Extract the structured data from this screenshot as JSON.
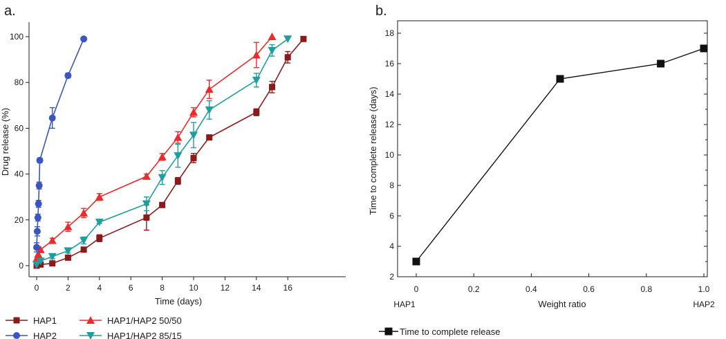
{
  "chart_data": [
    {
      "panel": "a.",
      "type": "line",
      "title": "",
      "xlabel": "Time (days)",
      "ylabel": "Drug release (%)",
      "xlim": [
        -1,
        19
      ],
      "ylim": [
        -2,
        105
      ],
      "xticks": [
        0,
        2,
        4,
        6,
        8,
        10,
        12,
        14,
        16
      ],
      "yticks": [
        0,
        20,
        40,
        60,
        80,
        100
      ],
      "series": [
        {
          "name": "HAP1",
          "color": "#8b1a1a",
          "marker": "square",
          "x": [
            0,
            0.25,
            1,
            2,
            3,
            4,
            7,
            8,
            9,
            10,
            11,
            14,
            15,
            16,
            17
          ],
          "y": [
            0,
            0.5,
            1,
            3.5,
            7,
            12,
            21,
            26.5,
            37,
            47,
            56,
            67,
            78,
            91,
            99
          ],
          "err": [
            0,
            0,
            1,
            1,
            1,
            1.5,
            5.5,
            0,
            1.5,
            2,
            0,
            1.5,
            2.5,
            2.5,
            0
          ]
        },
        {
          "name": "HAP1/HAP2 50/50",
          "color": "#ee2a2a",
          "marker": "triangle-up",
          "x": [
            0,
            0.1,
            0.25,
            1,
            2,
            3,
            4,
            7,
            8,
            9,
            10,
            11,
            14,
            15
          ],
          "y": [
            3,
            5,
            7,
            11,
            17,
            23,
            30,
            39,
            47.5,
            56,
            67,
            77,
            92,
            100
          ],
          "err": [
            0,
            0,
            0,
            1,
            2,
            2,
            1.5,
            1,
            1.5,
            2.5,
            2,
            4,
            5.5,
            0
          ]
        },
        {
          "name": "HAP1/HAP2 85/15",
          "color": "#1e9e9e",
          "marker": "triangle-down",
          "x": [
            0,
            0.25,
            1,
            2,
            3,
            4,
            7,
            8,
            9,
            10,
            11,
            14,
            15,
            16
          ],
          "y": [
            0.5,
            2,
            4,
            6.5,
            11,
            19,
            27,
            38.5,
            48,
            57,
            68,
            81,
            94,
            99
          ],
          "err": [
            0,
            0,
            1,
            1,
            1.5,
            0.5,
            3,
            3,
            5,
            5.5,
            4,
            3,
            2.5,
            0
          ]
        },
        {
          "name": "HAP2",
          "color": "#3a55bf",
          "marker": "circle",
          "x": [
            0,
            0.04,
            0.08,
            0.12,
            0.16,
            0.2,
            1,
            2,
            3
          ],
          "y": [
            8,
            15,
            21,
            27,
            35,
            46,
            64.5,
            83,
            99
          ],
          "err": [
            2,
            2,
            1.5,
            1.5,
            1.5,
            1,
            4.5,
            1,
            0
          ]
        }
      ],
      "legend": [
        "HAP1",
        "HAP2",
        "HAP1/HAP2 50/50",
        "HAP1/HAP2 85/15"
      ]
    },
    {
      "panel": "b.",
      "type": "line",
      "title": "",
      "xlabel": "Weight ratio",
      "ylabel": "Time to complete release (days)",
      "xlim": [
        -0.05,
        1.05
      ],
      "ylim": [
        2,
        19
      ],
      "xticks": [
        0,
        0.2,
        0.4,
        0.6,
        0.8,
        1.0
      ],
      "xtick_labels": [
        "0",
        "0.2",
        "0.4",
        "0.6",
        "0.8",
        "1.0"
      ],
      "yticks": [
        2,
        4,
        6,
        8,
        10,
        12,
        14,
        16,
        18
      ],
      "x_end_labels": [
        "HAP1",
        "HAP2"
      ],
      "series": [
        {
          "name": "Time to complete release",
          "color": "#111111",
          "marker": "square",
          "x": [
            0,
            0.5,
            0.85,
            1.0
          ],
          "y": [
            3,
            15,
            16,
            17
          ]
        }
      ],
      "legend": [
        "Time to complete release"
      ]
    }
  ]
}
